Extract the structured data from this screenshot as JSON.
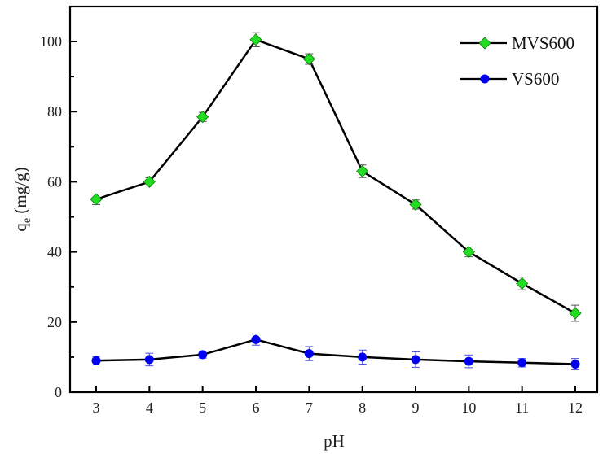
{
  "chart_data": {
    "type": "line",
    "title": "",
    "xlabel": "pH",
    "ylabel": "q_e (mg/g)",
    "ylabel_main": "q",
    "ylabel_sub": "e",
    "ylabel_unit": " (mg/g)",
    "x": [
      3,
      4,
      5,
      6,
      7,
      8,
      9,
      10,
      11,
      12
    ],
    "xlim": [
      2.5,
      12.4
    ],
    "ylim": [
      0,
      110
    ],
    "xticks": [
      "3",
      "4",
      "5",
      "6",
      "7",
      "8",
      "9",
      "10",
      "11",
      "12"
    ],
    "yticks": [
      "0",
      "20",
      "40",
      "60",
      "80",
      "100"
    ],
    "grid": false,
    "legend_position": "upper right",
    "series": [
      {
        "name": "MVS600",
        "marker": "diamond",
        "marker_color": "#22dd22",
        "line_color": "#000000",
        "values": [
          55,
          60,
          78.5,
          100.5,
          95,
          63,
          53.5,
          40,
          31,
          22.5
        ],
        "errors": [
          1.5,
          1.2,
          1.3,
          2.0,
          1.5,
          1.8,
          1.3,
          1.4,
          1.8,
          2.3
        ]
      },
      {
        "name": "VS600",
        "marker": "circle",
        "marker_color": "#0000ee",
        "line_color": "#000000",
        "values": [
          9,
          9.3,
          10.7,
          15,
          11,
          10,
          9.3,
          8.8,
          8.4,
          8
        ],
        "errors": [
          1.2,
          1.8,
          1.0,
          1.6,
          2.0,
          2.0,
          2.2,
          1.8,
          1.2,
          1.6
        ]
      }
    ]
  }
}
